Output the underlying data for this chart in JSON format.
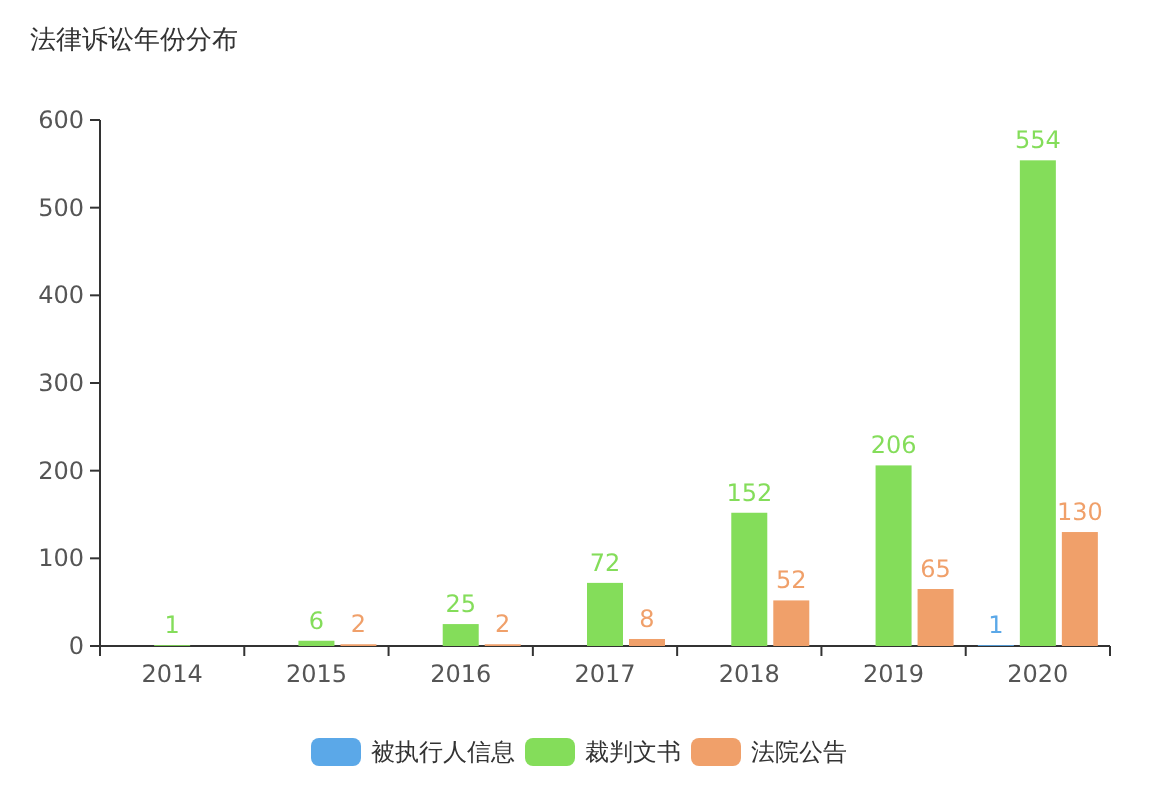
{
  "chart_data": {
    "type": "bar",
    "title": "法律诉讼年份分布",
    "categories": [
      "2014",
      "2015",
      "2016",
      "2017",
      "2018",
      "2019",
      "2020"
    ],
    "series": [
      {
        "name": "被执行人信息",
        "color": "#5ba8e8",
        "values": [
          null,
          null,
          null,
          null,
          null,
          null,
          1
        ]
      },
      {
        "name": "裁判文书",
        "color": "#84dd5a",
        "values": [
          1,
          6,
          25,
          72,
          152,
          206,
          554
        ]
      },
      {
        "name": "法院公告",
        "color": "#f0a06a",
        "values": [
          null,
          2,
          2,
          8,
          52,
          65,
          130
        ]
      }
    ],
    "ylim": [
      0,
      600
    ],
    "yticks": [
      0,
      100,
      200,
      300,
      400,
      500,
      600
    ],
    "grid": false,
    "legend": "bottom",
    "data_labels": true
  }
}
